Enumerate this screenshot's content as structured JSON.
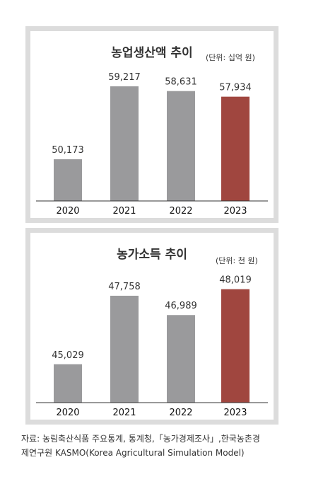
{
  "colors": {
    "bar": "#9a9a9c",
    "highlight": "#a0463f",
    "panel_border": "#dcdcdc"
  },
  "chart_data": [
    {
      "type": "bar",
      "title": "농업생산액 추이",
      "unit": "(단위: 십억 원)",
      "categories": [
        "2020",
        "2021",
        "2022",
        "2023"
      ],
      "values": [
        50173,
        59217,
        58631,
        57934
      ],
      "value_labels": [
        "50,173",
        "59,217",
        "58,631",
        "57,934"
      ],
      "highlight_index": 3,
      "ylim": [
        45000,
        61500
      ]
    },
    {
      "type": "bar",
      "title": "농가소득 추이",
      "unit": "(단위: 천 원)",
      "categories": [
        "2020",
        "2021",
        "2022",
        "2023"
      ],
      "values": [
        45029,
        47758,
        46989,
        48019
      ],
      "value_labels": [
        "45,029",
        "47,758",
        "46,989",
        "48,019"
      ],
      "highlight_index": 3,
      "ylim": [
        43500,
        48800
      ]
    }
  ],
  "source": {
    "line1": "자료: 농림축산식품 주요통계, 통계청,「농가경제조사」,한국농촌경",
    "line2": "제연구원 KASMO(Korea Agricultural Simulation Model)"
  }
}
